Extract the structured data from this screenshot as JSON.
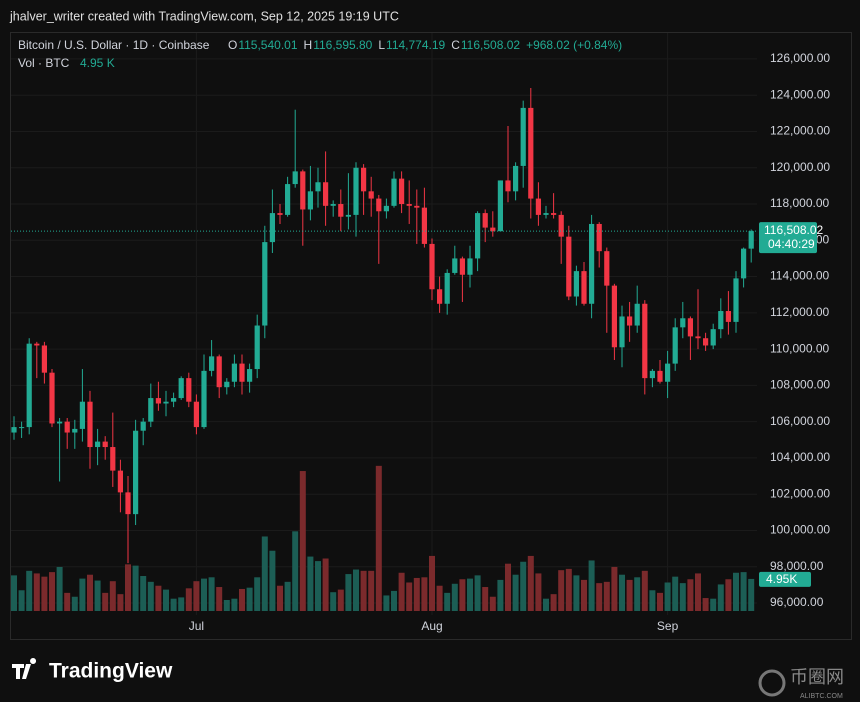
{
  "header": "jhalver_writer created with TradingView.com, Sep 12, 2025 19:19 UTC",
  "legend": {
    "symbol": "Bitcoin / U.S. Dollar · 1D · Coinbase",
    "o_key": "O",
    "open": "115,540.01",
    "h_key": "H",
    "high": "116,595.80",
    "l_key": "L",
    "low": "114,774.19",
    "c_key": "C",
    "close": "116,508.02",
    "change": "+968.02 (+0.84%)",
    "vol_key": "Vol · BTC",
    "vol": "4.95 K"
  },
  "logo": "TradingView",
  "watermark": {
    "name": "币圈网",
    "site": "ALIBTC.COM"
  },
  "chart_data": {
    "type": "candlestick",
    "categories": [
      null,
      null,
      null,
      null,
      null,
      null,
      null,
      null,
      null,
      null,
      null,
      null,
      null,
      null,
      null,
      null,
      null,
      null,
      null,
      null,
      null,
      null,
      null,
      null,
      "Jul",
      null,
      null,
      null,
      null,
      null,
      null,
      null,
      null,
      null,
      null,
      null,
      null,
      null,
      null,
      null,
      null,
      null,
      null,
      null,
      null,
      null,
      null,
      null,
      null,
      null,
      null,
      null,
      null,
      null,
      null,
      "Aug",
      null,
      null,
      null,
      null,
      null,
      null,
      null,
      null,
      null,
      null,
      null,
      null,
      null,
      null,
      null,
      null,
      null,
      null,
      null,
      null,
      null,
      null,
      null,
      null,
      null,
      null,
      null,
      null,
      null,
      null,
      "Sep",
      null,
      null,
      null,
      null,
      null,
      null,
      null,
      null,
      null,
      null,
      null
    ],
    "open": [
      105400,
      105700,
      105700,
      110300,
      110200,
      108700,
      105900,
      106000,
      105400,
      105600,
      107100,
      104600,
      104900,
      104600,
      103300,
      102100,
      100900,
      105500,
      106000,
      107300,
      107000,
      107100,
      107300,
      108400,
      107100,
      105700,
      108800,
      109600,
      107900,
      108200,
      109200,
      108200,
      108900,
      111300,
      115900,
      117500,
      117400,
      119100,
      119800,
      117700,
      118700,
      119200,
      117900,
      118000,
      117300,
      117400,
      120000,
      118700,
      118300,
      117600,
      117900,
      119400,
      118000,
      117900,
      117800,
      115800,
      113300,
      112500,
      114200,
      115000,
      114100,
      115000,
      117500,
      116700,
      116500,
      119300,
      118700,
      120100,
      123300,
      118300,
      117400,
      117500,
      117400,
      116200,
      112900,
      114300,
      112500,
      116900,
      115400,
      113500,
      110100,
      111800,
      111300,
      112500,
      108400,
      108800,
      108200,
      109200,
      111200,
      111700,
      110700,
      110600,
      110200,
      111100,
      112100,
      111500,
      113900,
      115540.01
    ],
    "high": [
      106300,
      106000,
      110600,
      110400,
      110400,
      108900,
      106200,
      106200,
      106100,
      108900,
      107700,
      105600,
      105200,
      106500,
      103900,
      103000,
      106100,
      106200,
      108100,
      108200,
      107700,
      107600,
      108500,
      108700,
      107500,
      109700,
      110500,
      109700,
      108400,
      109700,
      109700,
      109200,
      111900,
      116800,
      118800,
      118000,
      119500,
      123200,
      119900,
      120100,
      120000,
      120900,
      118200,
      118800,
      119700,
      120300,
      120200,
      119500,
      118500,
      118300,
      119800,
      119800,
      119300,
      118800,
      118900,
      116100,
      114000,
      114400,
      115700,
      115100,
      115700,
      117600,
      117700,
      117600,
      119300,
      122300,
      120300,
      123700,
      124400,
      119200,
      117900,
      118600,
      117600,
      116800,
      114600,
      114800,
      117400,
      117000,
      115600,
      113600,
      112400,
      112600,
      113500,
      112700,
      108900,
      109400,
      109900,
      111700,
      112600,
      111800,
      113300,
      110900,
      111400,
      112800,
      113200,
      114300,
      115600,
      116595.8
    ],
    "low": [
      105000,
      105100,
      105300,
      108400,
      108100,
      105700,
      102700,
      104500,
      104500,
      104900,
      103400,
      103600,
      103900,
      102400,
      101000,
      98200,
      100300,
      104700,
      105700,
      106600,
      106300,
      106800,
      107200,
      106800,
      105300,
      105600,
      108500,
      107300,
      107500,
      107900,
      107500,
      107600,
      108400,
      110600,
      115300,
      116900,
      117300,
      118900,
      115700,
      117100,
      117800,
      116800,
      117300,
      116500,
      116600,
      116200,
      117400,
      117300,
      114700,
      117200,
      117800,
      117500,
      116900,
      115800,
      115600,
      112700,
      112000,
      111900,
      114100,
      112600,
      113400,
      114300,
      115900,
      116200,
      116500,
      118100,
      118200,
      118900,
      117200,
      116800,
      117200,
      117200,
      114700,
      112700,
      112400,
      112400,
      111700,
      114500,
      110900,
      109400,
      109000,
      110400,
      110900,
      107500,
      107900,
      108100,
      107300,
      108800,
      110600,
      109400,
      110000,
      109900,
      110000,
      110600,
      110800,
      110900,
      113400,
      114774.19
    ],
    "close": [
      105700,
      105700,
      110300,
      110200,
      108700,
      105900,
      106000,
      105400,
      105600,
      107100,
      104600,
      104900,
      104600,
      103300,
      102100,
      100900,
      105500,
      106000,
      107300,
      107000,
      107100,
      107300,
      108400,
      107100,
      105700,
      108800,
      109600,
      107900,
      108200,
      109200,
      108200,
      108900,
      111300,
      115900,
      117500,
      117400,
      119100,
      119800,
      117700,
      118700,
      119200,
      117900,
      118000,
      117300,
      117400,
      120000,
      118700,
      118300,
      117600,
      117900,
      119400,
      118000,
      117900,
      117800,
      115800,
      113300,
      112500,
      114200,
      115000,
      114100,
      115000,
      117500,
      116700,
      116500,
      119300,
      118700,
      120100,
      123300,
      118300,
      117400,
      117500,
      117400,
      116200,
      112900,
      114300,
      112500,
      116900,
      115400,
      113500,
      110100,
      111800,
      111300,
      112500,
      108400,
      108800,
      108200,
      109200,
      111200,
      111700,
      110700,
      110600,
      110200,
      111100,
      112100,
      111500,
      113900,
      115540.01,
      116508.02
    ],
    "volume": [
      5500,
      3200,
      6200,
      5800,
      5300,
      6000,
      6800,
      2800,
      2200,
      5000,
      5600,
      4700,
      2800,
      4600,
      2600,
      7200,
      7000,
      5400,
      4500,
      3900,
      3300,
      1900,
      2100,
      3500,
      4600,
      5000,
      5200,
      3700,
      1700,
      1900,
      3400,
      3600,
      5200,
      11500,
      9300,
      3900,
      4500,
      12300,
      21600,
      8400,
      7700,
      8100,
      2900,
      3300,
      5700,
      6400,
      6200,
      6200,
      22400,
      2400,
      3100,
      5900,
      4400,
      5100,
      5200,
      8500,
      3900,
      2800,
      4200,
      4900,
      5000,
      5500,
      3700,
      2200,
      4800,
      7300,
      5600,
      7600,
      8500,
      5800,
      1900,
      2600,
      6300,
      6500,
      5500,
      4800,
      7800,
      4300,
      4500,
      6800,
      5600,
      4800,
      5200,
      6200,
      3200,
      2800,
      4400,
      5300,
      4300,
      4900,
      5800,
      2000,
      1900,
      4100,
      4900,
      5900,
      6000,
      4950
    ],
    "up_color": "#22ab94",
    "down_color": "#f23645",
    "up_volume_color": "#1c5e55",
    "down_volume_color": "#7b2a2c",
    "ylim": [
      93960,
      127430
    ],
    "volume_lim": [
      0,
      25000
    ],
    "yticks": [
      {
        "value": 96000,
        "label": "96,000.00"
      },
      {
        "value": 98000,
        "label": "98,000.00"
      },
      {
        "value": 100000,
        "label": "100,000.00"
      },
      {
        "value": 102000,
        "label": "102,000.00"
      },
      {
        "value": 104000,
        "label": "104,000.00"
      },
      {
        "value": 106000,
        "label": "106,000.00"
      },
      {
        "value": 108000,
        "label": "108,000.00"
      },
      {
        "value": 110000,
        "label": "110,000.00"
      },
      {
        "value": 112000,
        "label": "112,000.00"
      },
      {
        "value": 114000,
        "label": "114,000.00"
      },
      {
        "value": 116000,
        "label": "116,000.00"
      },
      {
        "value": 118000,
        "label": "118,000.00"
      },
      {
        "value": 120000,
        "label": "120,000.00"
      },
      {
        "value": 122000,
        "label": "122,000.00"
      },
      {
        "value": 124000,
        "label": "124,000.00"
      },
      {
        "value": 126000,
        "label": "126,000.00"
      }
    ],
    "grid": true,
    "price_label": "116,508.02",
    "countdown": "04:40:29",
    "volume_label": "4.95K"
  }
}
